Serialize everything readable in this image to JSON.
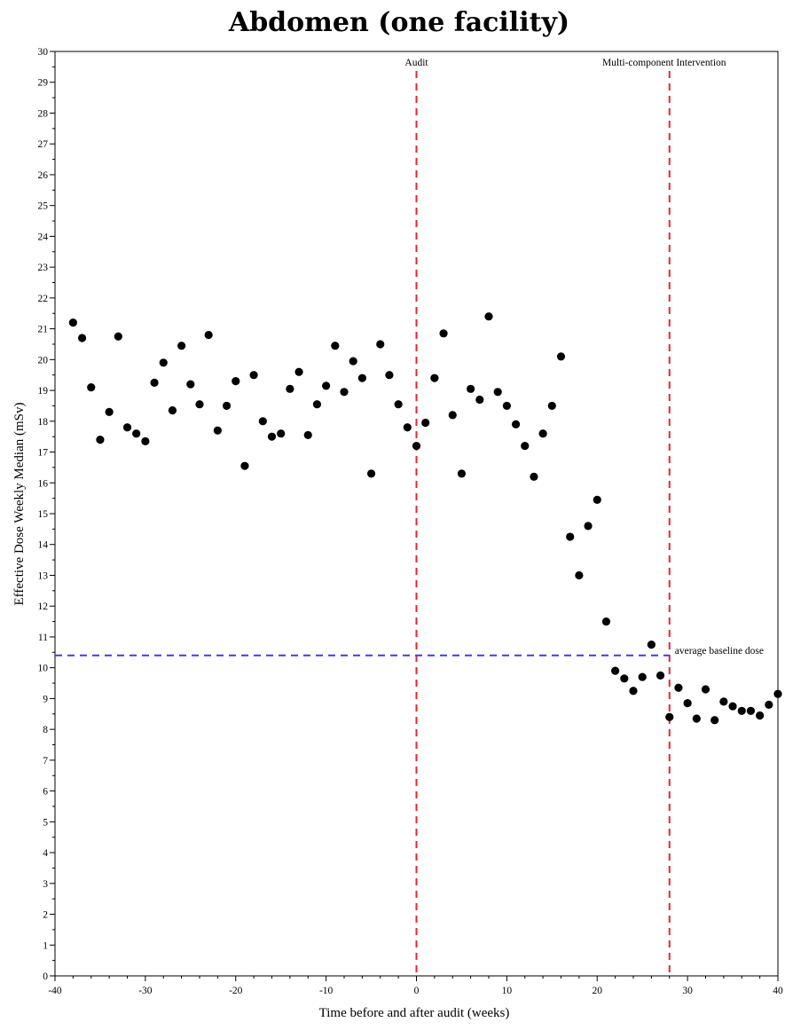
{
  "chart_data": {
    "type": "scatter",
    "title": "Abdomen (one facility)",
    "xlabel": "Time before and after audit (weeks)",
    "ylabel": "Effective Dose Weekly Median (mSv)",
    "xlim": [
      -40,
      40
    ],
    "ylim": [
      0,
      30
    ],
    "xticks": [
      -40,
      -30,
      -20,
      -10,
      0,
      10,
      20,
      30,
      40
    ],
    "yticks": [
      0,
      1,
      2,
      3,
      4,
      5,
      6,
      7,
      8,
      9,
      10,
      11,
      12,
      13,
      14,
      15,
      16,
      17,
      18,
      19,
      20,
      21,
      22,
      23,
      24,
      25,
      26,
      27,
      28,
      29,
      30
    ],
    "grid": false,
    "marker_color": "#000000",
    "points": [
      [
        -38,
        21.2
      ],
      [
        -37,
        20.7
      ],
      [
        -36,
        19.1
      ],
      [
        -35,
        17.4
      ],
      [
        -34,
        18.3
      ],
      [
        -33,
        20.75
      ],
      [
        -32,
        17.8
      ],
      [
        -31,
        17.6
      ],
      [
        -30,
        17.35
      ],
      [
        -29,
        19.25
      ],
      [
        -28,
        19.9
      ],
      [
        -27,
        18.35
      ],
      [
        -26,
        20.45
      ],
      [
        -25,
        19.2
      ],
      [
        -24,
        18.55
      ],
      [
        -23,
        20.8
      ],
      [
        -22,
        17.7
      ],
      [
        -21,
        18.5
      ],
      [
        -20,
        19.3
      ],
      [
        -19,
        16.55
      ],
      [
        -18,
        19.5
      ],
      [
        -17,
        18.0
      ],
      [
        -16,
        17.5
      ],
      [
        -15,
        17.6
      ],
      [
        -14,
        19.05
      ],
      [
        -13,
        19.6
      ],
      [
        -12,
        17.55
      ],
      [
        -11,
        18.55
      ],
      [
        -10,
        19.15
      ],
      [
        -9,
        20.45
      ],
      [
        -8,
        18.95
      ],
      [
        -7,
        19.95
      ],
      [
        -6,
        19.4
      ],
      [
        -5,
        16.3
      ],
      [
        -4,
        20.5
      ],
      [
        -3,
        19.5
      ],
      [
        -2,
        18.55
      ],
      [
        -1,
        17.8
      ],
      [
        0,
        17.2
      ],
      [
        1,
        17.95
      ],
      [
        2,
        19.4
      ],
      [
        3,
        20.85
      ],
      [
        4,
        18.2
      ],
      [
        5,
        16.3
      ],
      [
        6,
        19.05
      ],
      [
        7,
        18.7
      ],
      [
        8,
        21.4
      ],
      [
        9,
        18.95
      ],
      [
        10,
        18.5
      ],
      [
        11,
        17.9
      ],
      [
        12,
        17.2
      ],
      [
        13,
        16.2
      ],
      [
        14,
        17.6
      ],
      [
        15,
        18.5
      ],
      [
        16,
        20.1
      ],
      [
        17,
        14.25
      ],
      [
        18,
        13.0
      ],
      [
        19,
        14.6
      ],
      [
        20,
        15.45
      ],
      [
        21,
        11.5
      ],
      [
        22,
        9.9
      ],
      [
        23,
        9.65
      ],
      [
        24,
        9.25
      ],
      [
        25,
        9.7
      ],
      [
        26,
        10.75
      ],
      [
        27,
        9.75
      ],
      [
        28,
        8.4
      ],
      [
        29,
        9.35
      ],
      [
        30,
        8.85
      ],
      [
        31,
        8.35
      ],
      [
        32,
        9.3
      ],
      [
        33,
        8.3
      ],
      [
        34,
        8.9
      ],
      [
        35,
        8.75
      ],
      [
        36,
        8.6
      ],
      [
        37,
        8.6
      ],
      [
        38,
        8.45
      ],
      [
        39,
        8.8
      ],
      [
        40,
        9.15
      ]
    ],
    "reference_lines": [
      {
        "axis": "x",
        "value": 0,
        "label": "Audit",
        "color": "#e8262b",
        "style": "dashed"
      },
      {
        "axis": "x",
        "value": 28,
        "label": "Multi-component Intervention",
        "color": "#e8262b",
        "style": "dashed"
      },
      {
        "axis": "y",
        "value": 10.4,
        "label": "average baseline dose",
        "color": "#3a3aff",
        "style": "dashed"
      }
    ]
  }
}
